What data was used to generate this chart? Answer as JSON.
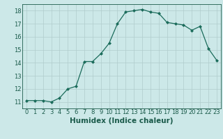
{
  "x": [
    0,
    1,
    2,
    3,
    4,
    5,
    6,
    7,
    8,
    9,
    10,
    11,
    12,
    13,
    14,
    15,
    16,
    17,
    18,
    19,
    20,
    21,
    22,
    23
  ],
  "y": [
    11.1,
    11.1,
    11.1,
    11.0,
    11.3,
    12.0,
    12.2,
    14.1,
    14.1,
    14.7,
    15.5,
    17.0,
    17.9,
    18.0,
    18.1,
    17.9,
    17.8,
    17.1,
    17.0,
    16.9,
    16.5,
    16.8,
    15.1,
    14.2
  ],
  "xlabel": "Humidex (Indice chaleur)",
  "xlim": [
    -0.5,
    23.5
  ],
  "ylim": [
    10.5,
    18.5
  ],
  "yticks": [
    11,
    12,
    13,
    14,
    15,
    16,
    17,
    18
  ],
  "xticks": [
    0,
    1,
    2,
    3,
    4,
    5,
    6,
    7,
    8,
    9,
    10,
    11,
    12,
    13,
    14,
    15,
    16,
    17,
    18,
    19,
    20,
    21,
    22,
    23
  ],
  "line_color": "#1a6b5a",
  "marker": "D",
  "marker_size": 2.0,
  "bg_color": "#cce8e8",
  "grid_color": "#b0cccc",
  "tick_label_color": "#1a5a4a",
  "xlabel_fontsize": 7.5,
  "tick_fontsize": 6.0
}
